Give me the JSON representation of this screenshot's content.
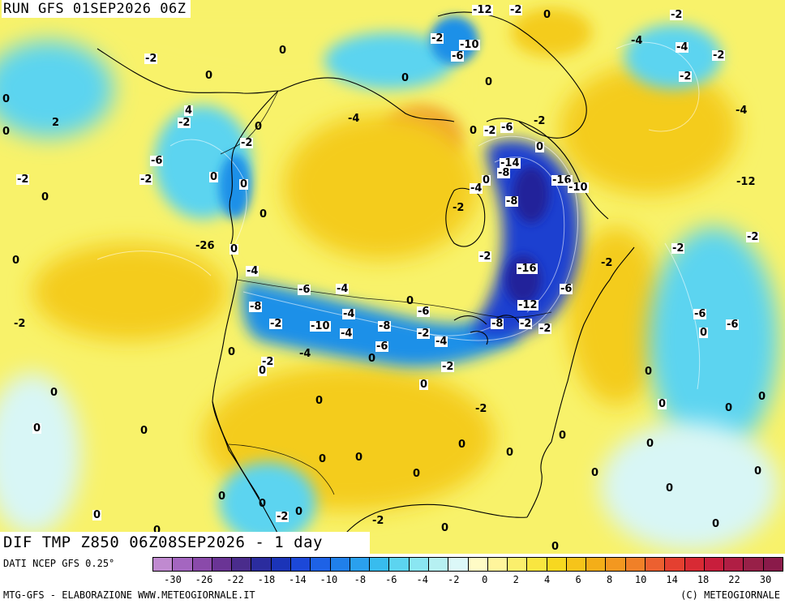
{
  "header": {
    "run_title": "RUN GFS 01SEP2026 06Z"
  },
  "map": {
    "title": "DIF TMP Z850 06Z08SEP2026 - 1 day",
    "labels": [
      "-12",
      "-2",
      "0",
      "-2",
      "-2",
      "-10",
      "-6",
      "-2",
      "0",
      "-4",
      "-4",
      "-2",
      "-2",
      "0",
      "0",
      "0",
      "0",
      "0",
      "2",
      "4",
      "-2",
      "-4",
      "0",
      "0",
      "-2",
      "-6",
      "-2",
      "0",
      "-2",
      "-6",
      "-4",
      "-12",
      "-14",
      "-8",
      "0",
      "-4",
      "-8",
      "-16",
      "-10",
      "-2",
      "-2",
      "0",
      "0",
      "0",
      "0",
      "-2",
      "-2",
      "-2",
      "-26",
      "0",
      "-2",
      "-16",
      "-4",
      "-2",
      "0",
      "-6",
      "-4",
      "-6",
      "-12",
      "0",
      "-6",
      "-8",
      "-4",
      "-2",
      "-6",
      "-6",
      "-8",
      "-10",
      "-8",
      "-2",
      "-2",
      "0",
      "-4",
      "-2",
      "-4",
      "-6",
      "-2",
      "0",
      "-4",
      "-2",
      "0",
      "0",
      "-2",
      "0",
      "0",
      "0",
      "0",
      "-2",
      "0",
      "0",
      "0",
      "0",
      "0",
      "0",
      "0",
      "0",
      "0",
      "0",
      "0",
      "0",
      "0",
      "0",
      "0",
      "0",
      "0",
      "0",
      "-2",
      "0",
      "-2",
      "0",
      "0",
      "0",
      "0",
      "0",
      "0"
    ],
    "colors": {
      "deep_negative": "#22249a",
      "strong_negative": "#1c3fd0",
      "mid_negative": "#1e90e8",
      "light_negative": "#5cd4f0",
      "near_zero": "#d8f6f6",
      "light_positive": "#f8f26a",
      "positive": "#f4cc1a",
      "warm_positive": "#f0a030",
      "coastline": "#000000"
    }
  },
  "legend": {
    "colors": [
      "#c08ad0",
      "#a466c0",
      "#8a4aaa",
      "#6a3495",
      "#4a2c8c",
      "#2b2c9e",
      "#1b34b8",
      "#1c48d8",
      "#1e62e6",
      "#2080ea",
      "#2aa0ee",
      "#38bcee",
      "#5cd4f0",
      "#8ae6f2",
      "#b6f0f2",
      "#dcf8f8",
      "#fffbc6",
      "#fff59c",
      "#fbef6c",
      "#f9e640",
      "#f7d820",
      "#f6c41a",
      "#f4ae18",
      "#f39820",
      "#f08028",
      "#ec6030",
      "#e44030",
      "#d82a34",
      "#c81e3c",
      "#b01e44",
      "#982048",
      "#8a1a4a"
    ],
    "ticks": [
      "-30",
      "-26",
      "-22",
      "-18",
      "-14",
      "-10",
      "-8",
      "-6",
      "-4",
      "-2",
      "0",
      "2",
      "4",
      "6",
      "8",
      "10",
      "14",
      "18",
      "22",
      "30"
    ]
  },
  "footer": {
    "source": "DATI NCEP GFS 0.25°",
    "credit_left": "MTG-GFS - ELABORAZIONE WWW.METEOGIORNALE.IT",
    "credit_right": "(C) METEOGIORNALE"
  }
}
